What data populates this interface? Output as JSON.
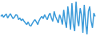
{
  "chart_data": {
    "type": "line",
    "color": "#3a9ad9",
    "grid": false,
    "tick_labels": false,
    "x": [
      1,
      2,
      3,
      4,
      5,
      6,
      7,
      8,
      9,
      10,
      11,
      12,
      13,
      14,
      15,
      16,
      17,
      18,
      19,
      20,
      21,
      22,
      23,
      24,
      25,
      26,
      27,
      28,
      29,
      30,
      31,
      32,
      33,
      34,
      35,
      36,
      37,
      38,
      39,
      40,
      41,
      42,
      43,
      44,
      45,
      46,
      47,
      48,
      49,
      50,
      51,
      52,
      53,
      54,
      55,
      56,
      57,
      58,
      59,
      60,
      61,
      62,
      63,
      64,
      65,
      66,
      67,
      68,
      69,
      70
    ],
    "values": [
      55,
      60,
      52,
      58,
      62,
      50,
      57,
      63,
      55,
      48,
      53,
      60,
      58,
      45,
      50,
      42,
      47,
      40,
      35,
      30,
      38,
      28,
      25,
      33,
      40,
      45,
      38,
      30,
      42,
      50,
      55,
      48,
      60,
      52,
      45,
      58,
      65,
      50,
      40,
      70,
      55,
      45,
      35,
      60,
      48,
      30,
      75,
      40,
      20,
      85,
      50,
      15,
      95,
      30,
      10,
      100,
      45,
      25,
      80,
      60,
      5,
      90,
      35,
      0,
      70,
      85,
      40,
      20,
      65,
      55
    ],
    "xlim": [
      1,
      70
    ],
    "ylim": [
      0,
      100
    ]
  }
}
